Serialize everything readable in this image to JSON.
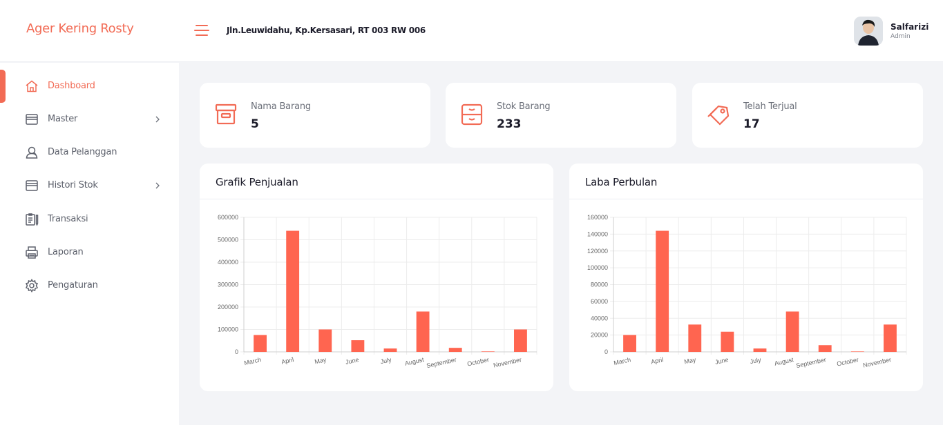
{
  "header": {
    "brand": "Ager Kering Rosty",
    "address": "Jln.Leuwidahu, Kp.Kersasari, RT 003 RW 006",
    "user": {
      "name": "Salfarizi",
      "role": "Admin"
    }
  },
  "sidebar": {
    "items": [
      {
        "label": "Dashboard",
        "icon": "home-icon",
        "active": true
      },
      {
        "label": "Master",
        "icon": "archive-icon",
        "has_submenu": true
      },
      {
        "label": "Data Pelanggan",
        "icon": "user-icon"
      },
      {
        "label": "Histori Stok",
        "icon": "archive-icon",
        "has_submenu": true
      },
      {
        "label": "Transaksi",
        "icon": "clipboard-icon"
      },
      {
        "label": "Laporan",
        "icon": "printer-icon"
      },
      {
        "label": "Pengaturan",
        "icon": "gear-icon"
      }
    ]
  },
  "stats": [
    {
      "label": "Nama Barang",
      "value": "5",
      "icon": "archive-box-icon"
    },
    {
      "label": "Stok Barang",
      "value": "233",
      "icon": "drawer-icon"
    },
    {
      "label": "Telah Terjual",
      "value": "17",
      "icon": "tag-icon"
    }
  ],
  "colors": {
    "accent": "#f26b55",
    "bar": "#ff6550"
  },
  "panels": {
    "sales_title": "Grafik Penjualan",
    "profit_title": "Laba Perbulan"
  },
  "chart_data": [
    {
      "type": "bar",
      "title": "Grafik Penjualan",
      "categories": [
        "March",
        "April",
        "May",
        "June",
        "July",
        "August",
        "September",
        "October",
        "November"
      ],
      "values": [
        75000,
        540000,
        100000,
        52000,
        15000,
        180000,
        18000,
        2000,
        100000
      ],
      "ylim": [
        0,
        600000
      ],
      "yticks": [
        0,
        100000,
        200000,
        300000,
        400000,
        500000,
        600000
      ],
      "grid": true,
      "legend": "none"
    },
    {
      "type": "bar",
      "title": "Laba Perbulan",
      "categories": [
        "March",
        "April",
        "May",
        "June",
        "July",
        "August",
        "September",
        "October",
        "November"
      ],
      "values": [
        20000,
        144000,
        32500,
        24000,
        4000,
        48000,
        8000,
        500,
        32500
      ],
      "ylim": [
        0,
        160000
      ],
      "yticks": [
        0,
        20000,
        40000,
        60000,
        80000,
        100000,
        120000,
        140000,
        160000
      ],
      "grid": true,
      "legend": "none"
    }
  ]
}
